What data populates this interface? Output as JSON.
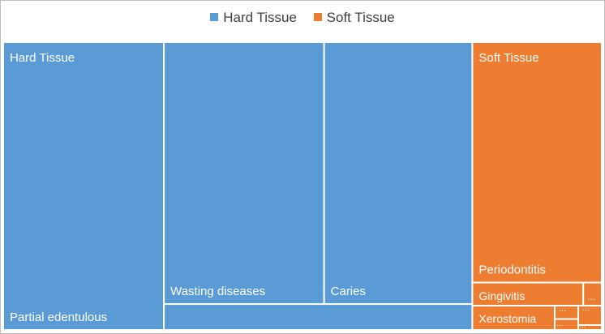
{
  "chart_data": {
    "type": "treemap",
    "legend": [
      {
        "name": "Hard Tissue",
        "color": "#5b9bd5"
      },
      {
        "name": "Soft Tissue",
        "color": "#ed7d31"
      }
    ],
    "groups": [
      {
        "name": "Hard Tissue",
        "color": "#5b9bd5",
        "items": [
          {
            "name": "Partial edentulous",
            "value": 162
          },
          {
            "name": "Wasting diseases",
            "value": 147
          },
          {
            "name": "Caries",
            "value": 136
          },
          {
            "name": "",
            "value": 28
          }
        ]
      },
      {
        "name": "Soft Tissue",
        "color": "#ed7d31",
        "items": [
          {
            "name": "Periodontitis",
            "value": 109
          },
          {
            "name": "Gingivitis",
            "value": 9
          },
          {
            "name": "...",
            "value": 1.5
          },
          {
            "name": "Xerostomia",
            "value": 7
          },
          {
            "name": "...",
            "value": 1
          },
          {
            "name": "...",
            "value": 1
          },
          {
            "name": "...",
            "value": 1
          },
          {
            "name": "...",
            "value": 1
          }
        ]
      }
    ]
  }
}
